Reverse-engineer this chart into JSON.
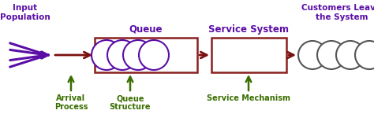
{
  "bg_color": "#ffffff",
  "text_color_purple": "#5B0EA6",
  "text_color_green": "#3a6e00",
  "arrow_color_dark_red": "#7B1010",
  "circle_edge_color": "#5B0EA6",
  "box_edge_color": "#8B2020",
  "output_circle_color": "#555555",
  "title": "Input\nPopulation",
  "queue_label": "Queue",
  "service_label": "Service System",
  "leave_label": "Customers Leave\nthe System",
  "arrival_label": "Arrival\nProcess",
  "queue_struct_label": "Queue\nStructure",
  "service_mech_label": "Service Mechanism",
  "figsize": [
    4.74,
    1.45
  ],
  "dpi": 100
}
